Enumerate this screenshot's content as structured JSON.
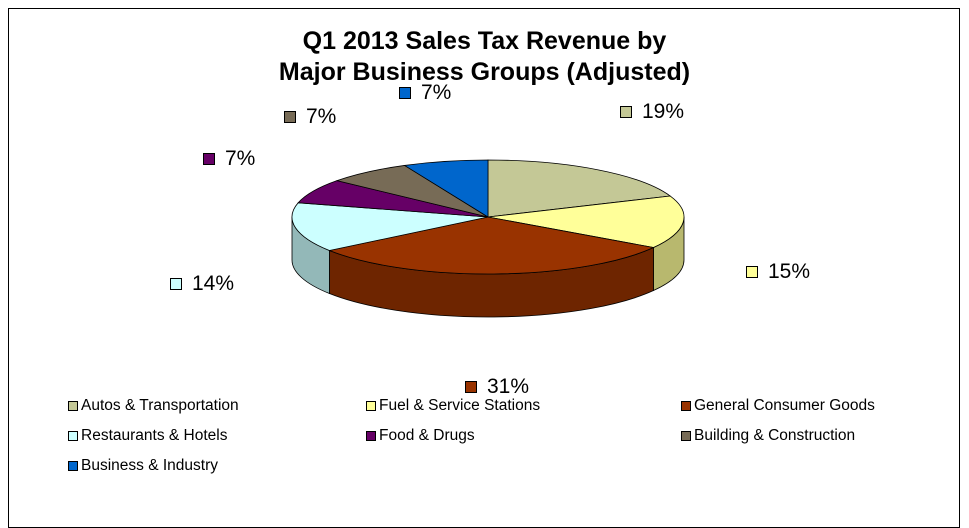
{
  "chart_data": {
    "type": "pie",
    "title_lines": [
      "Q1 2013 Sales Tax Revenue by",
      "Major Business Groups (Adjusted)"
    ],
    "slices": [
      {
        "label": "Autos & Transportation",
        "value": 19,
        "display": "19%",
        "color": "#C4C896"
      },
      {
        "label": "Fuel & Service Stations",
        "value": 15,
        "display": "15%",
        "color": "#FFFF99"
      },
      {
        "label": "General Consumer Goods",
        "value": 31,
        "display": "31%",
        "color": "#993300"
      },
      {
        "label": "Restaurants & Hotels",
        "value": 14,
        "display": "14%",
        "color": "#CCFFFF"
      },
      {
        "label": "Food & Drugs",
        "value": 7,
        "display": "7%",
        "color": "#660066"
      },
      {
        "label": "Building & Construction",
        "value": 7,
        "display": "7%",
        "color": "#776B56"
      },
      {
        "label": "Business & Industry",
        "value": 7,
        "display": "7%",
        "color": "#0066CC"
      }
    ],
    "legend_position": "bottom"
  }
}
